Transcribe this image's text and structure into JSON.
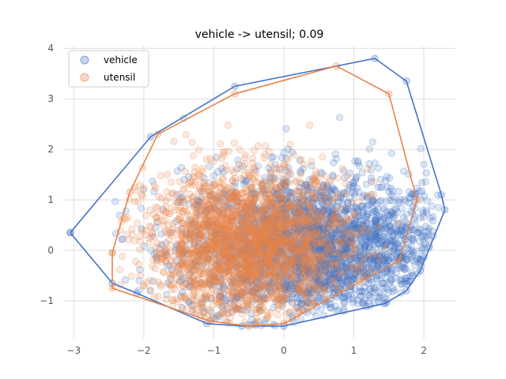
{
  "chart_data": {
    "type": "scatter",
    "title": "vehicle -> utensil; 0.09",
    "xlabel": "",
    "ylabel": "",
    "xlim": [
      -3.15,
      2.45
    ],
    "ylim": [
      -1.75,
      4.05
    ],
    "xticks": [
      -3,
      -2,
      -1,
      0,
      1,
      2
    ],
    "yticks": [
      -1,
      0,
      1,
      2,
      3,
      4
    ],
    "grid": true,
    "legend_position": "top-left",
    "series": [
      {
        "name": "vehicle",
        "color": "#4472c4",
        "hull": [
          [
            -3.05,
            0.35
          ],
          [
            -1.9,
            2.25
          ],
          [
            -0.7,
            3.25
          ],
          [
            1.3,
            3.8
          ],
          [
            1.75,
            3.35
          ],
          [
            2.25,
            1.1
          ],
          [
            2.3,
            0.8
          ],
          [
            1.95,
            -0.4
          ],
          [
            1.75,
            -0.8
          ],
          [
            1.45,
            -1.05
          ],
          [
            0.0,
            -1.5
          ],
          [
            -0.6,
            -1.5
          ],
          [
            -1.1,
            -1.45
          ],
          [
            -2.1,
            -0.85
          ],
          [
            -2.45,
            -0.65
          ],
          [
            -3.05,
            0.35
          ]
        ],
        "center": [
          0.45,
          0.05
        ],
        "spread": [
          0.95,
          0.72
        ]
      },
      {
        "name": "utensil",
        "color": "#e8834a",
        "hull": [
          [
            -2.45,
            -0.05
          ],
          [
            -2.2,
            1.15
          ],
          [
            -1.8,
            2.3
          ],
          [
            -0.7,
            3.1
          ],
          [
            0.75,
            3.65
          ],
          [
            1.5,
            3.1
          ],
          [
            1.9,
            1.0
          ],
          [
            1.65,
            -0.2
          ],
          [
            0.0,
            -1.45
          ],
          [
            -0.5,
            -1.5
          ],
          [
            -1.05,
            -1.4
          ],
          [
            -2.45,
            -0.75
          ],
          [
            -2.45,
            -0.05
          ]
        ],
        "center": [
          -0.5,
          0.1
        ],
        "spread": [
          0.72,
          0.72
        ]
      }
    ]
  }
}
